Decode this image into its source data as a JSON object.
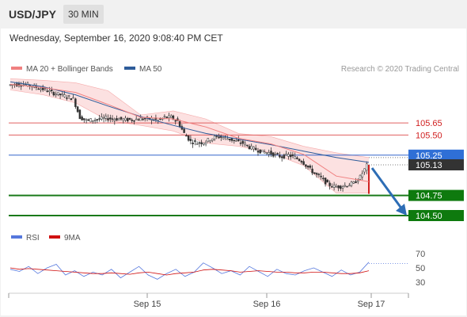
{
  "header": {
    "symbol": "USD/JPY",
    "timeframe": "30 MIN"
  },
  "datetime": "Wednesday, September 16, 2020 9:08:40 PM CET",
  "legend": {
    "bollinger": "MA 20 + Bollinger Bands",
    "ma50": "MA 50",
    "copyright": "Research © 2020 Trading Central",
    "rsi": "RSI",
    "rsi_ma": "9MA"
  },
  "colors": {
    "bollinger": "#f08080",
    "bollinger_fill": "#fbdada",
    "ma50": "#2e5c9a",
    "resistance": "#e06060",
    "pivot": "#3366cc",
    "support": "#1a7a1a",
    "current": "#333333",
    "arrow": "#2d6db5",
    "rsi": "#5577dd",
    "rsi_ma": "#d01010"
  },
  "chart_data": {
    "type": "candlestick",
    "instrument": "USD/JPY",
    "interval": "30 MIN",
    "x_ticks": [
      "Sep 15",
      "Sep 16",
      "Sep 17"
    ],
    "levels": [
      {
        "label": "105.65",
        "value": 105.65,
        "kind": "resistance"
      },
      {
        "label": "105.50",
        "value": 105.5,
        "kind": "resistance"
      },
      {
        "label": "105.25",
        "value": 105.25,
        "kind": "pivot"
      },
      {
        "label": "105.13",
        "value": 105.13,
        "kind": "current"
      },
      {
        "label": "104.75",
        "value": 104.75,
        "kind": "support"
      },
      {
        "label": "104.50",
        "value": 104.5,
        "kind": "support"
      }
    ],
    "price_path": [
      106.12,
      106.13,
      106.13,
      106.12,
      106.1,
      106.08,
      106.05,
      106.02,
      106.0,
      105.98,
      105.95,
      105.72,
      105.68,
      105.69,
      105.7,
      105.71,
      105.7,
      105.7,
      105.69,
      105.69,
      105.7,
      105.7,
      105.7,
      105.68,
      105.72,
      105.72,
      105.67,
      105.52,
      105.42,
      105.4,
      105.41,
      105.45,
      105.48,
      105.47,
      105.45,
      105.42,
      105.4,
      105.35,
      105.32,
      105.29,
      105.28,
      105.25,
      105.23,
      105.25,
      105.22,
      105.18,
      105.1,
      105.02,
      104.97,
      104.89,
      104.86,
      104.86,
      104.88,
      104.9,
      104.98,
      105.12
    ],
    "ma50_path": [
      106.16,
      106.1,
      106.0,
      105.86,
      105.73,
      105.62,
      105.52,
      105.45,
      105.38,
      105.3,
      105.22,
      105.16
    ],
    "ma20_path": [
      106.13,
      106.09,
      106.03,
      105.88,
      105.72,
      105.7,
      105.6,
      105.46,
      105.39,
      105.26,
      104.99,
      104.92
    ],
    "bollinger_upper": [
      106.2,
      106.18,
      106.15,
      106.05,
      105.75,
      105.8,
      105.7,
      105.52,
      105.48,
      105.36,
      105.28,
      105.22
    ],
    "bollinger_lower": [
      106.06,
      106.0,
      105.9,
      105.68,
      105.62,
      105.55,
      105.4,
      105.36,
      105.28,
      105.12,
      104.78,
      104.78
    ],
    "forecast": {
      "from": 105.13,
      "to": 104.5
    },
    "rsi": {
      "ticks": [
        70,
        50,
        30
      ],
      "ylim": [
        20,
        80
      ],
      "rsi_path": [
        48,
        45,
        52,
        42,
        50,
        55,
        40,
        46,
        38,
        44,
        40,
        48,
        36,
        44,
        52,
        40,
        34,
        42,
        48,
        38,
        44,
        57,
        50,
        42,
        46,
        40,
        52,
        45,
        38,
        48,
        42,
        40,
        46,
        50,
        44,
        38,
        47,
        40,
        44,
        58
      ],
      "ma_path": [
        50,
        48,
        49,
        48,
        47,
        46,
        45,
        44,
        43,
        42,
        42,
        43,
        42,
        41,
        43,
        44,
        42,
        40,
        42,
        43,
        44,
        47,
        48,
        47,
        46,
        44,
        45,
        46,
        45,
        44,
        44,
        43,
        43,
        44,
        44,
        43,
        42,
        42,
        43,
        46
      ]
    }
  }
}
